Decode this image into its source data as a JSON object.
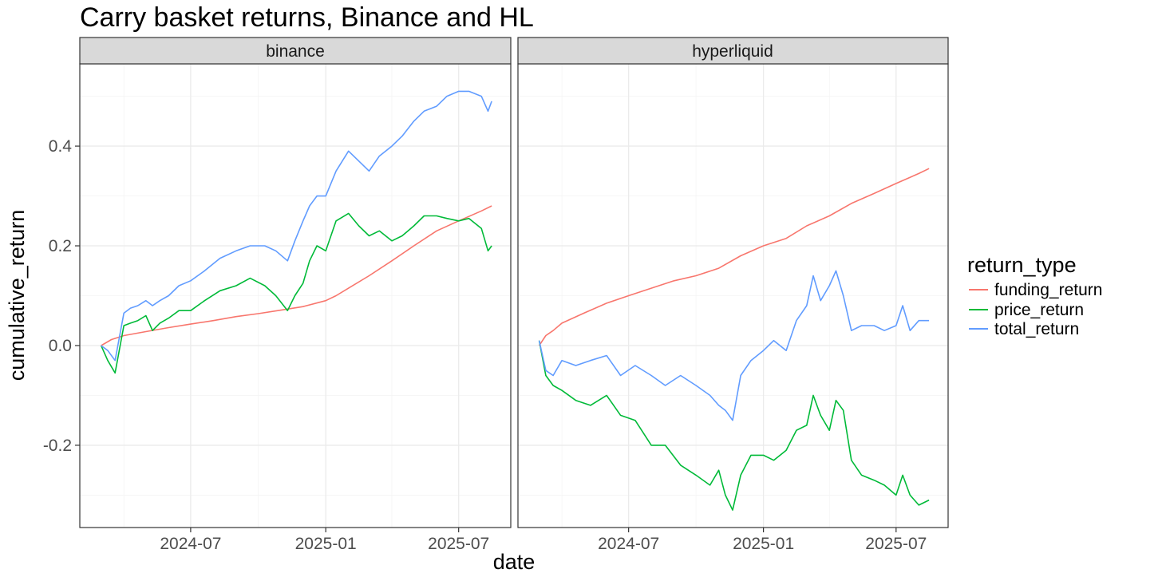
{
  "chart_data": {
    "type": "line",
    "title": "Carry basket returns, Binance and HL",
    "xlabel": "date",
    "ylabel": "cumulative_return",
    "x_ticks": [
      "2024-07",
      "2025-01",
      "2025-07"
    ],
    "y_ticks": [
      -0.2,
      0.0,
      0.2,
      0.4
    ],
    "y_tick_labels": [
      "-0.2",
      "0.0",
      "0.2",
      "0.4"
    ],
    "xlim": [
      "2024-02-01",
      "2025-09-10"
    ],
    "ylim": [
      -0.365,
      0.565
    ],
    "grid": true,
    "legend": {
      "title": "return_type",
      "position": "right",
      "entries": [
        "funding_return",
        "price_return",
        "total_return"
      ]
    },
    "colors": {
      "funding_return": "#F8766D",
      "price_return": "#00BA38",
      "total_return": "#619CFF"
    },
    "panels": [
      {
        "name": "binance",
        "series": [
          {
            "name": "funding_return",
            "x": [
              "2024-03-01",
              "2024-03-15",
              "2024-04-01",
              "2024-05-01",
              "2024-06-01",
              "2024-07-01",
              "2024-08-01",
              "2024-09-01",
              "2024-10-01",
              "2024-11-01",
              "2024-12-01",
              "2025-01-01",
              "2025-01-15",
              "2025-02-01",
              "2025-03-01",
              "2025-04-01",
              "2025-05-01",
              "2025-06-01",
              "2025-07-01",
              "2025-08-01",
              "2025-08-15"
            ],
            "y": [
              0.0,
              0.012,
              0.02,
              0.028,
              0.036,
              0.043,
              0.05,
              0.058,
              0.064,
              0.071,
              0.078,
              0.09,
              0.1,
              0.115,
              0.14,
              0.17,
              0.2,
              0.23,
              0.25,
              0.27,
              0.28
            ]
          },
          {
            "name": "price_return",
            "x": [
              "2024-03-01",
              "2024-03-10",
              "2024-03-20",
              "2024-04-01",
              "2024-04-10",
              "2024-04-20",
              "2024-05-01",
              "2024-05-10",
              "2024-05-20",
              "2024-06-01",
              "2024-06-15",
              "2024-07-01",
              "2024-07-20",
              "2024-08-10",
              "2024-09-01",
              "2024-09-20",
              "2024-10-10",
              "2024-10-25",
              "2024-11-10",
              "2024-11-20",
              "2024-12-01",
              "2024-12-10",
              "2024-12-20",
              "2025-01-01",
              "2025-01-15",
              "2025-02-01",
              "2025-02-15",
              "2025-03-01",
              "2025-03-15",
              "2025-04-01",
              "2025-04-15",
              "2025-05-01",
              "2025-05-15",
              "2025-06-01",
              "2025-06-15",
              "2025-07-01",
              "2025-07-15",
              "2025-08-01",
              "2025-08-10",
              "2025-08-15"
            ],
            "y": [
              0.0,
              -0.03,
              -0.055,
              0.04,
              0.045,
              0.05,
              0.06,
              0.03,
              0.045,
              0.055,
              0.07,
              0.07,
              0.09,
              0.11,
              0.12,
              0.135,
              0.12,
              0.1,
              0.07,
              0.1,
              0.125,
              0.17,
              0.2,
              0.19,
              0.25,
              0.265,
              0.24,
              0.22,
              0.23,
              0.21,
              0.22,
              0.24,
              0.26,
              0.26,
              0.255,
              0.25,
              0.255,
              0.235,
              0.19,
              0.2
            ]
          },
          {
            "name": "total_return",
            "x": [
              "2024-03-01",
              "2024-03-10",
              "2024-03-20",
              "2024-04-01",
              "2024-04-10",
              "2024-04-20",
              "2024-05-01",
              "2024-05-10",
              "2024-05-20",
              "2024-06-01",
              "2024-06-15",
              "2024-07-01",
              "2024-07-20",
              "2024-08-10",
              "2024-09-01",
              "2024-09-20",
              "2024-10-10",
              "2024-10-25",
              "2024-11-10",
              "2024-11-20",
              "2024-12-01",
              "2024-12-10",
              "2024-12-20",
              "2025-01-01",
              "2025-01-15",
              "2025-02-01",
              "2025-02-15",
              "2025-03-01",
              "2025-03-15",
              "2025-04-01",
              "2025-04-15",
              "2025-05-01",
              "2025-05-15",
              "2025-06-01",
              "2025-06-15",
              "2025-07-01",
              "2025-07-15",
              "2025-08-01",
              "2025-08-10",
              "2025-08-15"
            ],
            "y": [
              0.0,
              -0.01,
              -0.03,
              0.065,
              0.075,
              0.08,
              0.09,
              0.08,
              0.09,
              0.1,
              0.12,
              0.13,
              0.15,
              0.175,
              0.19,
              0.2,
              0.2,
              0.19,
              0.17,
              0.21,
              0.25,
              0.28,
              0.3,
              0.3,
              0.35,
              0.39,
              0.37,
              0.35,
              0.38,
              0.4,
              0.42,
              0.45,
              0.47,
              0.48,
              0.5,
              0.51,
              0.51,
              0.5,
              0.47,
              0.49
            ]
          }
        ]
      },
      {
        "name": "hyperliquid",
        "series": [
          {
            "name": "funding_return",
            "x": [
              "2024-03-01",
              "2024-03-10",
              "2024-03-20",
              "2024-04-01",
              "2024-05-01",
              "2024-06-01",
              "2024-07-01",
              "2024-08-01",
              "2024-09-01",
              "2024-10-01",
              "2024-11-01",
              "2024-12-01",
              "2025-01-01",
              "2025-02-01",
              "2025-03-01",
              "2025-04-01",
              "2025-05-01",
              "2025-06-01",
              "2025-07-01",
              "2025-08-01",
              "2025-08-15"
            ],
            "y": [
              0.0,
              0.02,
              0.03,
              0.045,
              0.065,
              0.085,
              0.1,
              0.115,
              0.13,
              0.14,
              0.155,
              0.18,
              0.2,
              0.215,
              0.24,
              0.26,
              0.285,
              0.305,
              0.325,
              0.345,
              0.355
            ]
          },
          {
            "name": "price_return",
            "x": [
              "2024-03-01",
              "2024-03-10",
              "2024-03-20",
              "2024-04-01",
              "2024-04-20",
              "2024-05-10",
              "2024-06-01",
              "2024-06-20",
              "2024-07-10",
              "2024-08-01",
              "2024-08-20",
              "2024-09-10",
              "2024-10-01",
              "2024-10-20",
              "2024-11-01",
              "2024-11-10",
              "2024-11-20",
              "2024-12-01",
              "2024-12-15",
              "2025-01-01",
              "2025-01-15",
              "2025-02-01",
              "2025-02-15",
              "2025-03-01",
              "2025-03-10",
              "2025-03-20",
              "2025-04-01",
              "2025-04-10",
              "2025-04-20",
              "2025-05-01",
              "2025-05-15",
              "2025-06-01",
              "2025-06-15",
              "2025-07-01",
              "2025-07-10",
              "2025-07-20",
              "2025-08-01",
              "2025-08-15"
            ],
            "y": [
              0.01,
              -0.06,
              -0.08,
              -0.09,
              -0.11,
              -0.12,
              -0.1,
              -0.14,
              -0.15,
              -0.2,
              -0.2,
              -0.24,
              -0.26,
              -0.28,
              -0.25,
              -0.3,
              -0.33,
              -0.26,
              -0.22,
              -0.22,
              -0.23,
              -0.21,
              -0.17,
              -0.16,
              -0.1,
              -0.14,
              -0.17,
              -0.11,
              -0.13,
              -0.23,
              -0.26,
              -0.27,
              -0.28,
              -0.3,
              -0.26,
              -0.3,
              -0.32,
              -0.31
            ]
          },
          {
            "name": "total_return",
            "x": [
              "2024-03-01",
              "2024-03-10",
              "2024-03-20",
              "2024-04-01",
              "2024-04-20",
              "2024-05-10",
              "2024-06-01",
              "2024-06-20",
              "2024-07-10",
              "2024-08-01",
              "2024-08-20",
              "2024-09-10",
              "2024-10-01",
              "2024-10-20",
              "2024-11-01",
              "2024-11-10",
              "2024-11-20",
              "2024-12-01",
              "2024-12-15",
              "2025-01-01",
              "2025-01-15",
              "2025-02-01",
              "2025-02-15",
              "2025-03-01",
              "2025-03-10",
              "2025-03-20",
              "2025-04-01",
              "2025-04-10",
              "2025-04-20",
              "2025-05-01",
              "2025-05-15",
              "2025-06-01",
              "2025-06-15",
              "2025-07-01",
              "2025-07-10",
              "2025-07-20",
              "2025-08-01",
              "2025-08-15"
            ],
            "y": [
              0.01,
              -0.05,
              -0.06,
              -0.03,
              -0.04,
              -0.03,
              -0.02,
              -0.06,
              -0.04,
              -0.06,
              -0.08,
              -0.06,
              -0.08,
              -0.1,
              -0.12,
              -0.13,
              -0.15,
              -0.06,
              -0.03,
              -0.01,
              0.01,
              -0.01,
              0.05,
              0.08,
              0.14,
              0.09,
              0.12,
              0.15,
              0.1,
              0.03,
              0.04,
              0.04,
              0.03,
              0.04,
              0.08,
              0.03,
              0.05,
              0.05
            ]
          }
        ]
      }
    ]
  }
}
